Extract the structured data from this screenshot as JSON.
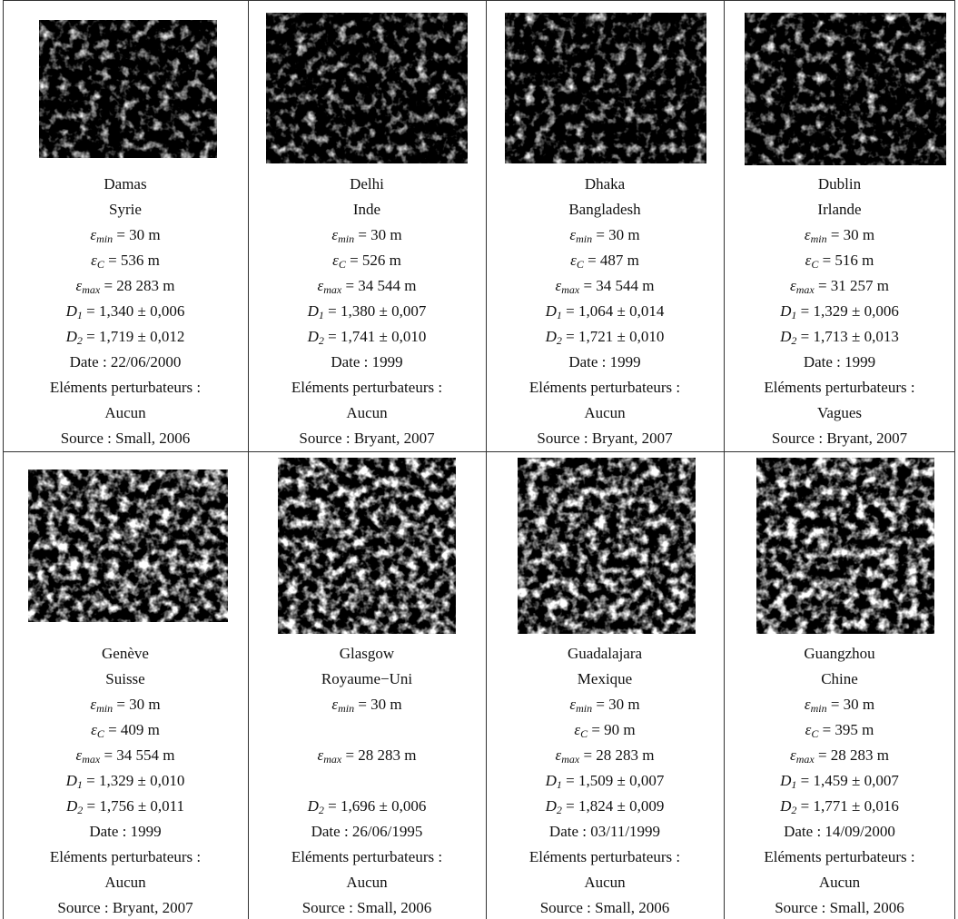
{
  "cells": [
    {
      "city": "Damas",
      "country": "Syrie",
      "emin": {
        "symbol": "ε",
        "sub": "min",
        "text": " = 30 m"
      },
      "ec": {
        "symbol": "ε",
        "sub": "C",
        "text": " = 536 m"
      },
      "emax": {
        "symbol": "ε",
        "sub": "max",
        "text": " = 28 283 m"
      },
      "d1": {
        "symbol": "D",
        "sub": "1",
        "text": " = 1,340 ± 0,006"
      },
      "d2": {
        "symbol": "D",
        "sub": "2",
        "text": " = 1,719 ± 0,012"
      },
      "date": "Date : 22/06/2000",
      "disturbance_label": "Eléments perturbateurs :",
      "disturbance": "Aucun",
      "source": "Source : Small, 2006"
    },
    {
      "city": "Delhi",
      "country": "Inde",
      "emin": {
        "symbol": "ε",
        "sub": "min",
        "text": " = 30 m"
      },
      "ec": {
        "symbol": "ε",
        "sub": "C",
        "text": " = 526 m"
      },
      "emax": {
        "symbol": "ε",
        "sub": "max",
        "text": " = 34 544 m"
      },
      "d1": {
        "symbol": "D",
        "sub": "1",
        "text": " = 1,380 ± 0,007"
      },
      "d2": {
        "symbol": "D",
        "sub": "2",
        "text": " = 1,741 ± 0,010"
      },
      "date": "Date : 1999",
      "disturbance_label": "Eléments perturbateurs :",
      "disturbance": "Aucun",
      "source": "Source : Bryant, 2007"
    },
    {
      "city": "Dhaka",
      "country": "Bangladesh",
      "emin": {
        "symbol": "ε",
        "sub": "min",
        "text": " = 30 m"
      },
      "ec": {
        "symbol": "ε",
        "sub": "C",
        "text": " = 487 m"
      },
      "emax": {
        "symbol": "ε",
        "sub": "max",
        "text": " = 34 544 m"
      },
      "d1": {
        "symbol": "D",
        "sub": "1",
        "text": " = 1,064 ± 0,014"
      },
      "d2": {
        "symbol": "D",
        "sub": "2",
        "text": " = 1,721 ± 0,010"
      },
      "date": "Date : 1999",
      "disturbance_label": "Eléments perturbateurs :",
      "disturbance": "Aucun",
      "source": "Source : Bryant, 2007"
    },
    {
      "city": "Dublin",
      "country": "Irlande",
      "emin": {
        "symbol": "ε",
        "sub": "min",
        "text": " = 30 m"
      },
      "ec": {
        "symbol": "ε",
        "sub": "C",
        "text": " = 516 m"
      },
      "emax": {
        "symbol": "ε",
        "sub": "max",
        "text": " = 31 257 m"
      },
      "d1": {
        "symbol": "D",
        "sub": "1",
        "text": " = 1,329 ± 0,006"
      },
      "d2": {
        "symbol": "D",
        "sub": "2",
        "text": " = 1,713 ± 0,013"
      },
      "date": "Date : 1999",
      "disturbance_label": "Eléments perturbateurs :",
      "disturbance": "Vagues",
      "source": "Source : Bryant, 2007"
    },
    {
      "city": "Genève",
      "country": "Suisse",
      "emin": {
        "symbol": "ε",
        "sub": "min",
        "text": " = 30 m"
      },
      "ec": {
        "symbol": "ε",
        "sub": "C",
        "text": " = 409 m"
      },
      "emax": {
        "symbol": "ε",
        "sub": "max",
        "text": " = 34 554 m"
      },
      "d1": {
        "symbol": "D",
        "sub": "1",
        "text": " = 1,329 ± 0,010"
      },
      "d2": {
        "symbol": "D",
        "sub": "2",
        "text": " = 1,756 ± 0,011"
      },
      "date": "Date : 1999",
      "disturbance_label": "Eléments perturbateurs :",
      "disturbance": "Aucun",
      "source": "Source : Bryant, 2007"
    },
    {
      "city": "Glasgow",
      "country": "Royaume−Uni",
      "emin": {
        "symbol": "ε",
        "sub": "min",
        "text": " = 30 m"
      },
      "emax": {
        "symbol": "ε",
        "sub": "max",
        "text": " = 28 283 m"
      },
      "d2": {
        "symbol": "D",
        "sub": "2",
        "text": " = 1,696 ± 0,006"
      },
      "date": "Date : 26/06/1995",
      "disturbance_label": "Eléments perturbateurs :",
      "disturbance": "Aucun",
      "source": "Source : Small, 2006"
    },
    {
      "city": "Guadalajara",
      "country": "Mexique",
      "emin": {
        "symbol": "ε",
        "sub": "min",
        "text": " = 30 m"
      },
      "ec": {
        "symbol": "ε",
        "sub": "C",
        "text": " = 90 m"
      },
      "emax": {
        "symbol": "ε",
        "sub": "max",
        "text": " = 28 283 m"
      },
      "d1": {
        "symbol": "D",
        "sub": "1",
        "text": " = 1,509 ± 0,007"
      },
      "d2": {
        "symbol": "D",
        "sub": "2",
        "text": " = 1,824 ± 0,009"
      },
      "date": "Date : 03/11/1999",
      "disturbance_label": "Eléments perturbateurs :",
      "disturbance": "Aucun",
      "source": "Source : Small, 2006"
    },
    {
      "city": "Guangzhou",
      "country": "Chine",
      "emin": {
        "symbol": "ε",
        "sub": "min",
        "text": " = 30 m"
      },
      "ec": {
        "symbol": "ε",
        "sub": "C",
        "text": " = 395 m"
      },
      "emax": {
        "symbol": "ε",
        "sub": "max",
        "text": " = 28 283 m"
      },
      "d1": {
        "symbol": "D",
        "sub": "1",
        "text": " = 1,459 ± 0,007"
      },
      "d2": {
        "symbol": "D",
        "sub": "2",
        "text": " = 1,771 ± 0,016"
      },
      "date": "Date : 14/09/2000",
      "disturbance_label": "Eléments perturbateurs :",
      "disturbance": "Aucun",
      "source": "Source : Small, 2006"
    }
  ]
}
